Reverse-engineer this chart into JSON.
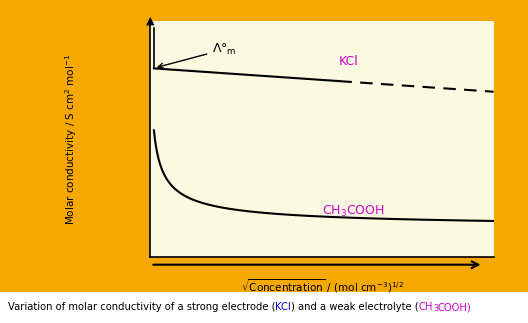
{
  "outer_bg": "#F5A800",
  "inner_bg": "#FAFAE0",
  "curve_color": "#000000",
  "label_color": "#CC00CC",
  "kcl_label": "KCl",
  "acoh_label": "CH$_3$COOH",
  "ylabel": "Molar conductivity / S cm$^2$ mol$^{-1}$",
  "xlabel": "$\\sqrt{\\mathrm{Concentration}}$ / (mol cm$^{-3}$)$^{1/2}$",
  "caption_kcl_color": "#0000CC",
  "caption_acoh_color": "#CC00CC",
  "fig_width": 5.28,
  "fig_height": 3.23,
  "dpi": 100
}
